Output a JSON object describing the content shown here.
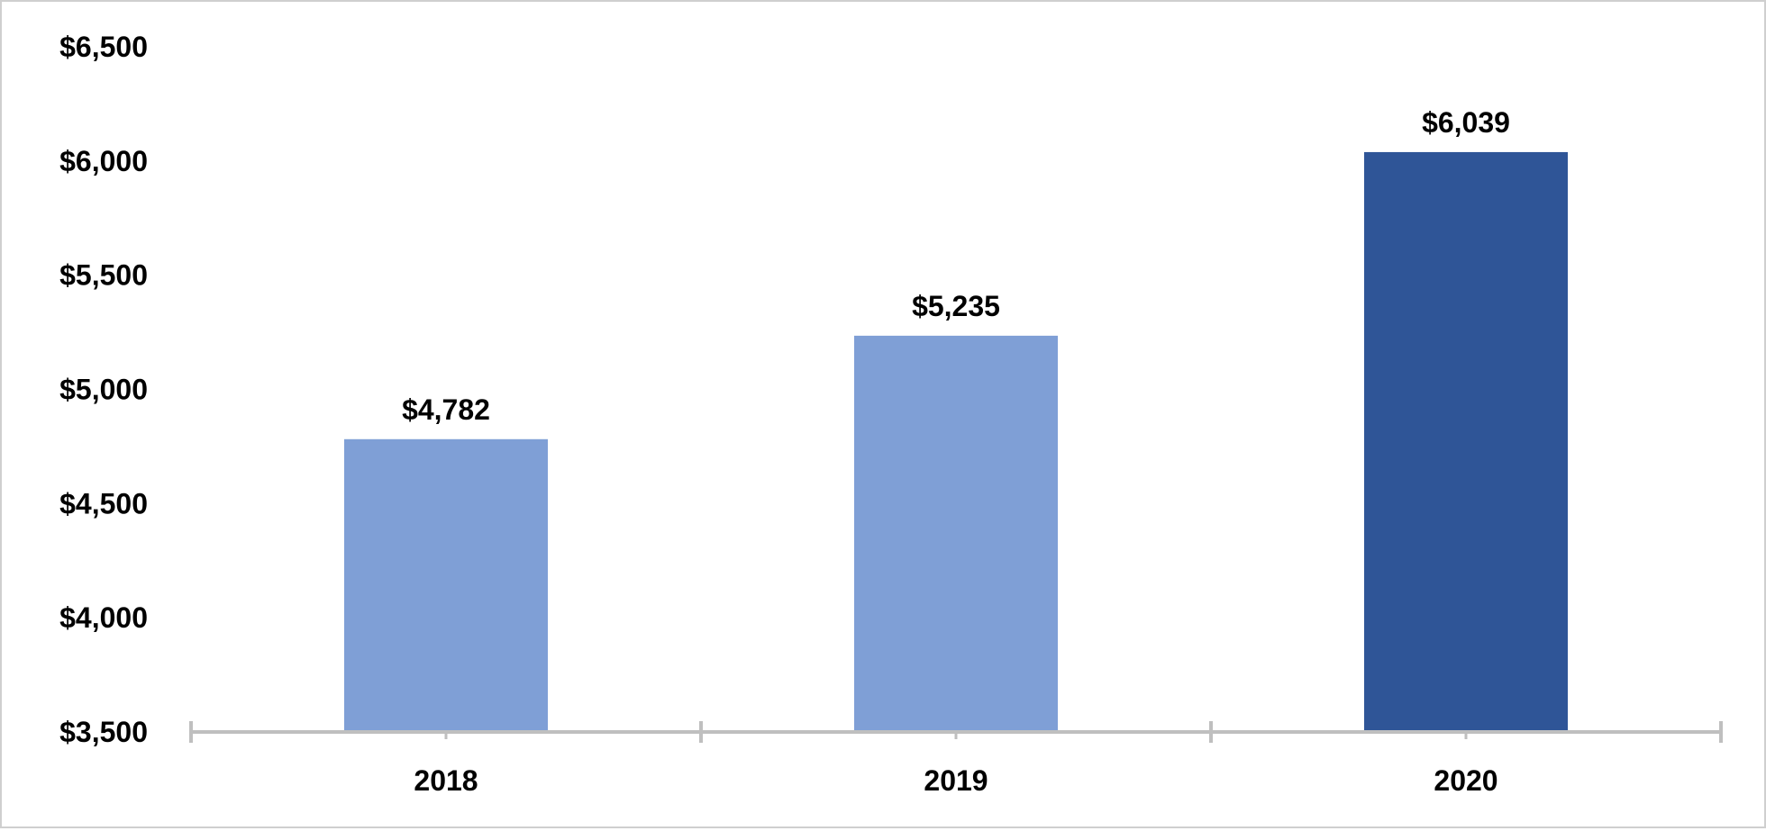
{
  "chart_data": {
    "type": "bar",
    "categories": [
      "2018",
      "2019",
      "2020"
    ],
    "values": [
      4782,
      5235,
      6039
    ],
    "data_labels": [
      "$4,782",
      "$5,235",
      "$6,039"
    ],
    "bar_colors": [
      "#7f9fd6",
      "#7f9fd6",
      "#2f5597"
    ],
    "ylim": [
      3500,
      6500
    ],
    "yticks": [
      3500,
      4000,
      4500,
      5000,
      5500,
      6000,
      6500
    ],
    "ytick_labels": [
      "$3,500",
      "$4,000",
      "$4,500",
      "$5,000",
      "$5,500",
      "$6,000",
      "$6,500"
    ],
    "axis_color": "#bfbfbf",
    "grid": false,
    "legend": "none",
    "title": "",
    "xlabel": "",
    "ylabel": ""
  }
}
